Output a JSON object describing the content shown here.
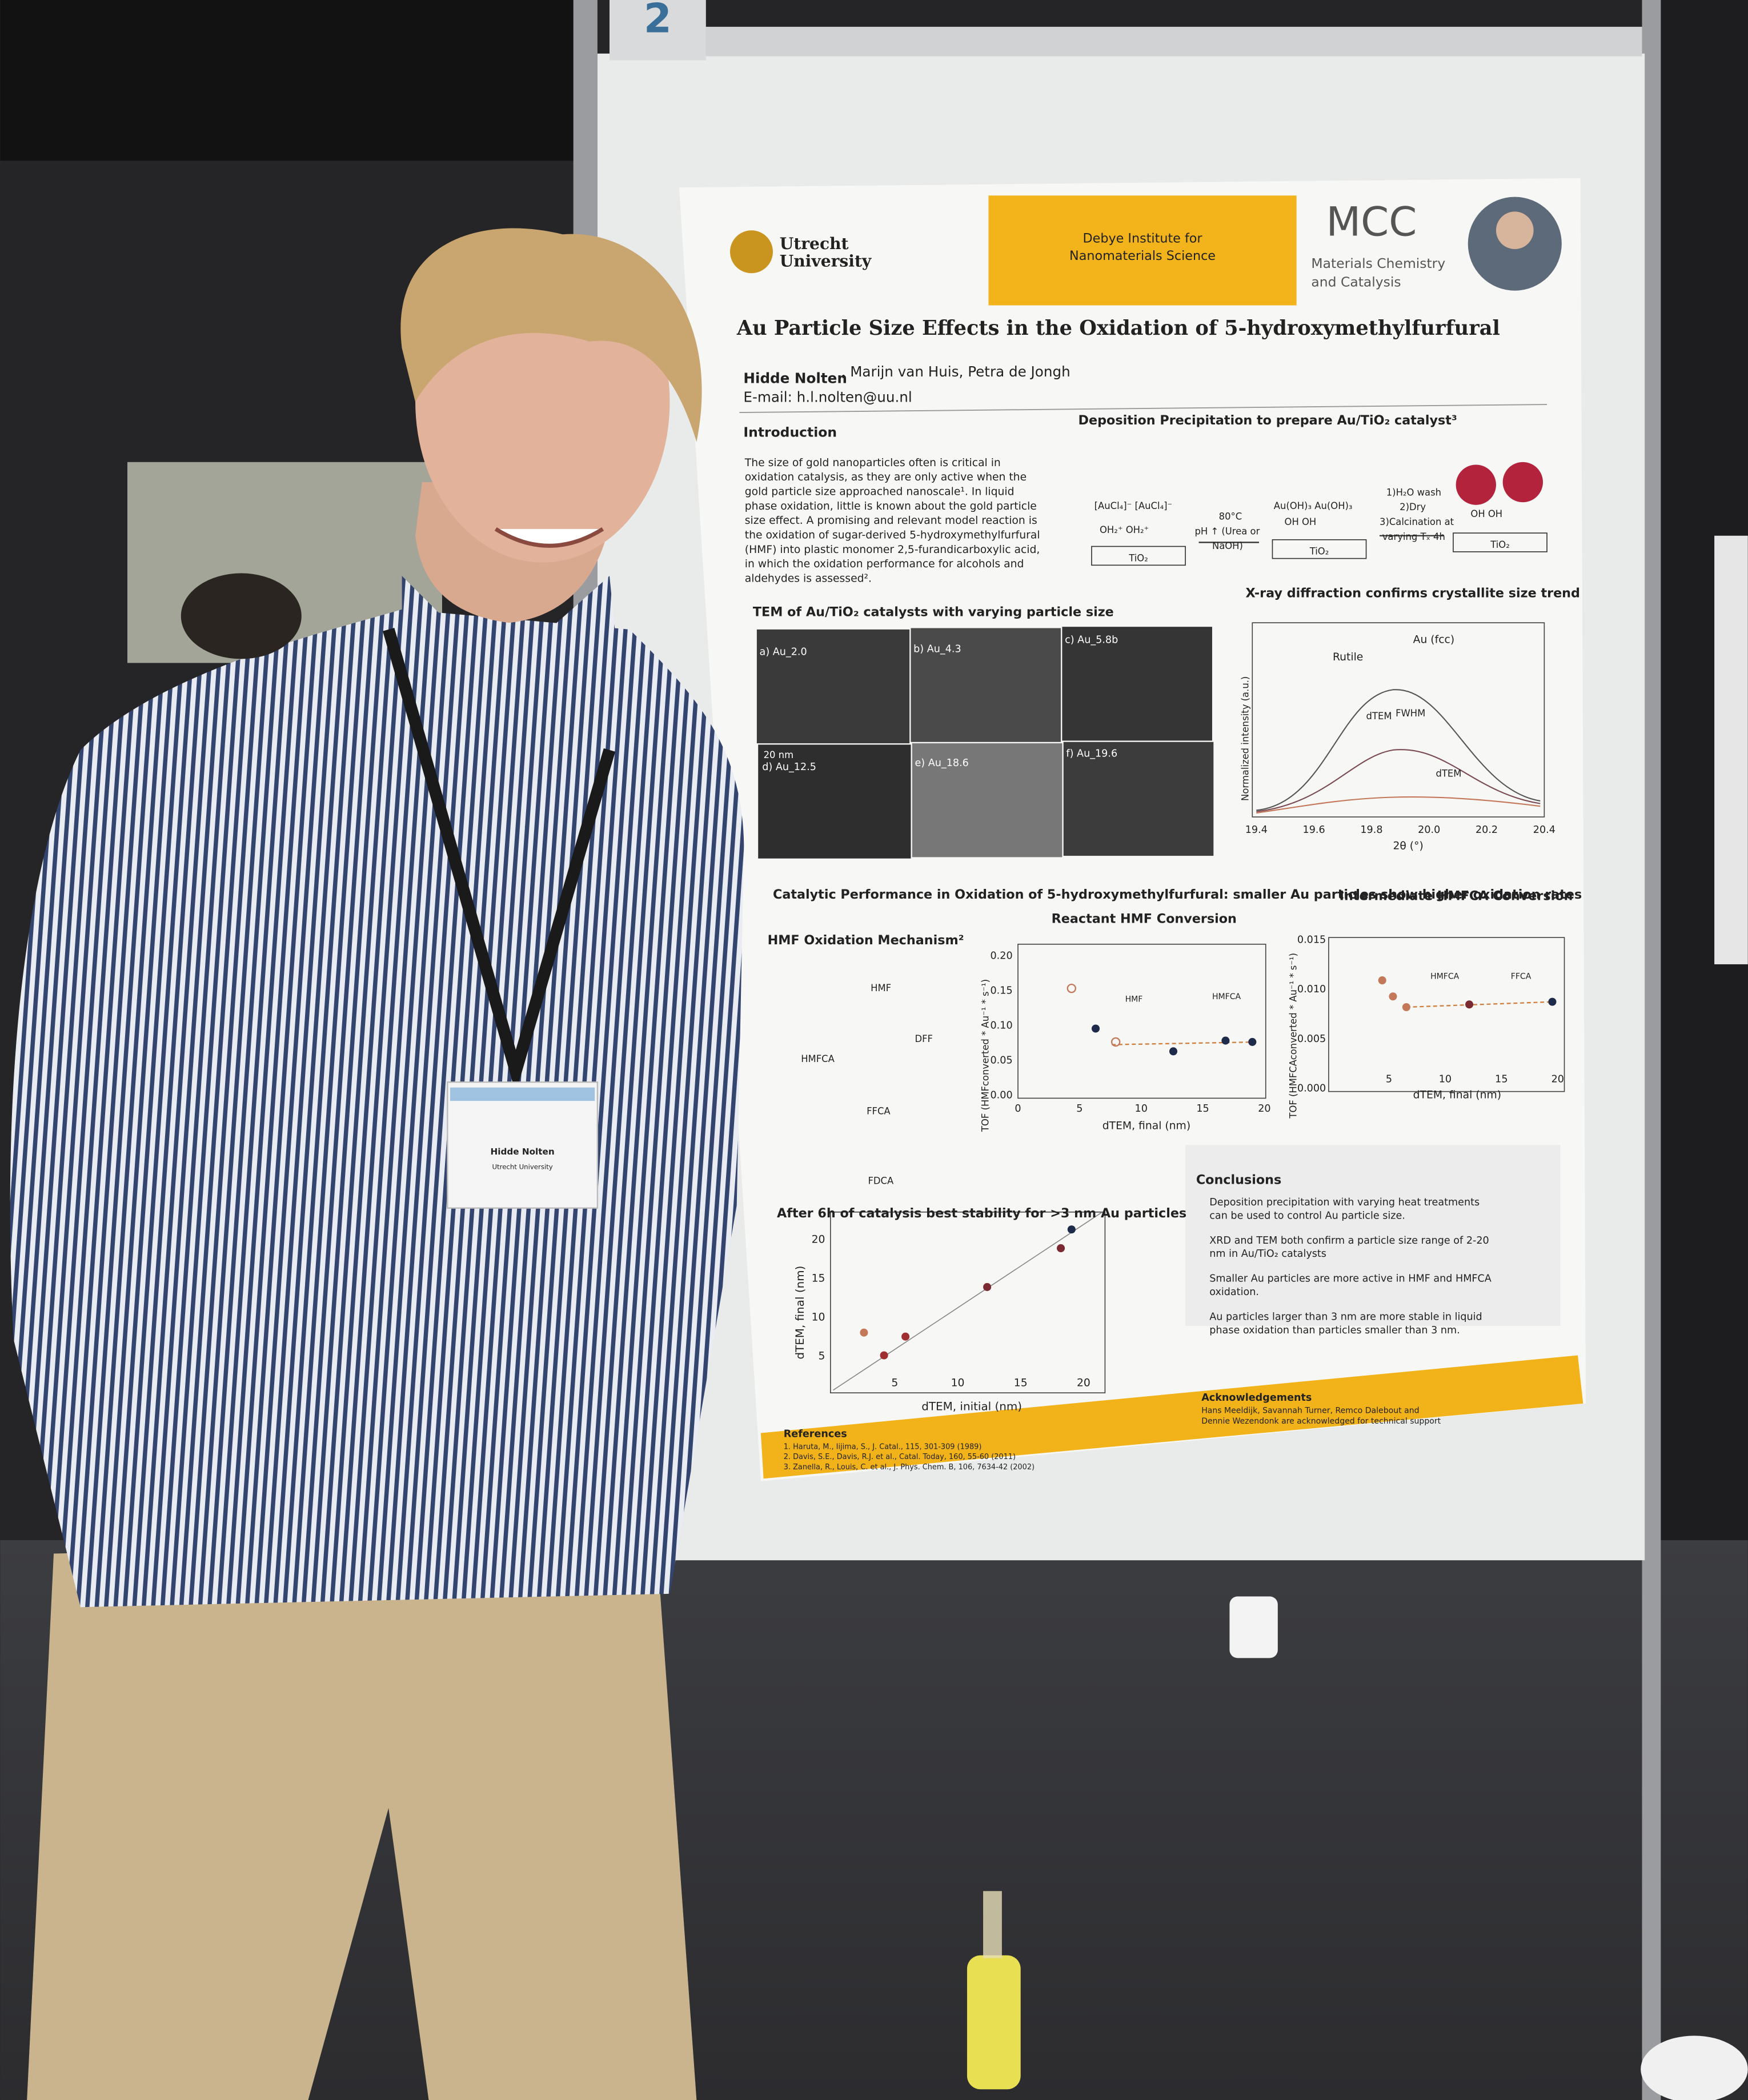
{
  "board_number": "2",
  "poster": {
    "header": {
      "university": [
        "Utrecht",
        "University"
      ],
      "institute": [
        "Debye Institute for",
        "Nanomaterials Science"
      ],
      "group_logo": "MCC",
      "group": [
        "Materials Chemistry",
        "and Catalysis"
      ]
    },
    "title": "Au Particle Size Effects in the Oxidation of 5-hydroxymethylfurfural",
    "author_lead": "Hidde Nolten",
    "authors_rest": ", Marijn van Huis, Petra de Jongh",
    "email": "E-mail: h.l.nolten@uu.nl",
    "introduction": {
      "heading": "Introduction",
      "lines": [
        "The size of gold nanoparticles often is critical in",
        "oxidation catalysis, as they are only active when the",
        "gold particle size approached nanoscale¹. In liquid",
        "phase oxidation, little is known about the gold particle",
        "size effect. A promising and relevant model reaction is",
        "the oxidation of sugar-derived 5-hydroxymethylfurfural",
        "(HMF) into plastic monomer 2,5-furandicarboxylic acid,",
        "in which the oxidation performance for alcohols and",
        "aldehydes is assessed²."
      ]
    },
    "deposition": {
      "heading": "Deposition Precipitation to prepare Au/TiO₂ catalyst³",
      "labels": [
        "[AuCl₄]⁻ [AuCl₄]⁻",
        "OH₂⁺     OH₂⁺",
        "TiO₂",
        "80°C",
        "pH ↑ (Urea or",
        "NaOH)",
        "Au(OH)₃ Au(OH)₃",
        "OH       OH",
        "TiO₂",
        "1)H₂O wash",
        "2)Dry",
        "3)Calcination at",
        "varying Tₓ 4h",
        "OH     OH",
        "TiO₂"
      ]
    },
    "tem": {
      "heading": "TEM of Au/TiO₂ catalysts with varying particle size",
      "panels": [
        "a) Au_2.0",
        "b) Au_4.3",
        "c) Au_5.8b",
        "d) Au_12.5",
        "e) Au_18.6",
        "f) Au_19.6"
      ],
      "scale": "20 nm"
    },
    "xrd": {
      "heading": "X-ray diffraction confirms crystallite size trend",
      "legend": [
        "Rutile",
        "Au (fcc)"
      ],
      "annotations": [
        "dTEM",
        "FWHM",
        "dTEM"
      ],
      "ylabel": "Normalized intensity (a.u.)",
      "xlabel": "2θ (°)",
      "xticks": [
        "19.4",
        "19.6",
        "19.8",
        "20.0",
        "20.2",
        "20.4"
      ]
    },
    "catalytic": {
      "heading": "Catalytic Performance in Oxidation of 5-hydroxymethylfurfural: smaller Au particles show higher oxidation rates",
      "mechanism": {
        "heading": "HMF Oxidation Mechanism²",
        "labels": [
          "HMF",
          "DFF",
          "HMFCA",
          "FFCA",
          "FDCA"
        ]
      },
      "hmf": {
        "heading": "Reactant HMF Conversion",
        "xticks": [
          "0",
          "5",
          "10",
          "15",
          "20"
        ],
        "yticks": [
          "0.00",
          "0.05",
          "0.10",
          "0.15",
          "0.20"
        ],
        "xlabel": "dTEM, final (nm)",
        "ylabel": "TOF (HMFconverted * Au⁻¹ * s⁻¹)",
        "labels": [
          "HMF",
          "HMFCA"
        ]
      },
      "hmfca": {
        "heading": "Intermediate HMFCA Conversion",
        "xticks": [
          "5",
          "10",
          "15",
          "20"
        ],
        "yticks": [
          "0.000",
          "0.005",
          "0.010",
          "0.015"
        ],
        "xlabel": "dTEM, final (nm)",
        "ylabel": "TOF (HMFCAconverted * Au⁻¹ * s⁻¹)",
        "labels": [
          "HMFCA",
          "FFCA"
        ]
      }
    },
    "stability": {
      "heading": "After 6h of catalysis best stability for >3 nm Au particles",
      "xticks": [
        "5",
        "10",
        "15",
        "20"
      ],
      "yticks": [
        "5",
        "10",
        "15",
        "20"
      ],
      "xlabel": "dTEM, initial (nm)",
      "ylabel": "dTEM, final (nm)"
    },
    "conclusions": {
      "heading": "Conclusions",
      "items": [
        [
          "Deposition precipitation with varying heat treatments",
          "can be used to control Au particle size."
        ],
        [
          "XRD and TEM both confirm a particle size range of 2-20",
          "nm in Au/TiO₂ catalysts"
        ],
        [
          "Smaller Au particles are more active in HMF and HMFCA",
          "oxidation."
        ],
        [
          "Au particles larger than 3 nm are more stable in liquid",
          "phase oxidation than particles smaller than 3 nm."
        ]
      ]
    },
    "acknowledgements": {
      "heading": "Acknowledgements",
      "lines": [
        "Hans Meeldijk, Savannah Turner, Remco Dalebout and",
        "Dennie Wezendonk are acknowledged for technical support"
      ]
    },
    "references": {
      "heading": "References",
      "lines": [
        "1. Haruta, M., Iijima, S., J. Catal., 115, 301-309 (1989)",
        "2. Davis, S.E., Davis, R.J. et al., Catal. Today, 160, 55-60 (2011)",
        "3. Zanella, R., Louis, C. et al., J. Phys. Chem. B, 106, 7634-42 (2002)"
      ]
    }
  },
  "badge": {
    "name": "Hidde Nolten",
    "affiliation": "Utrecht University"
  }
}
